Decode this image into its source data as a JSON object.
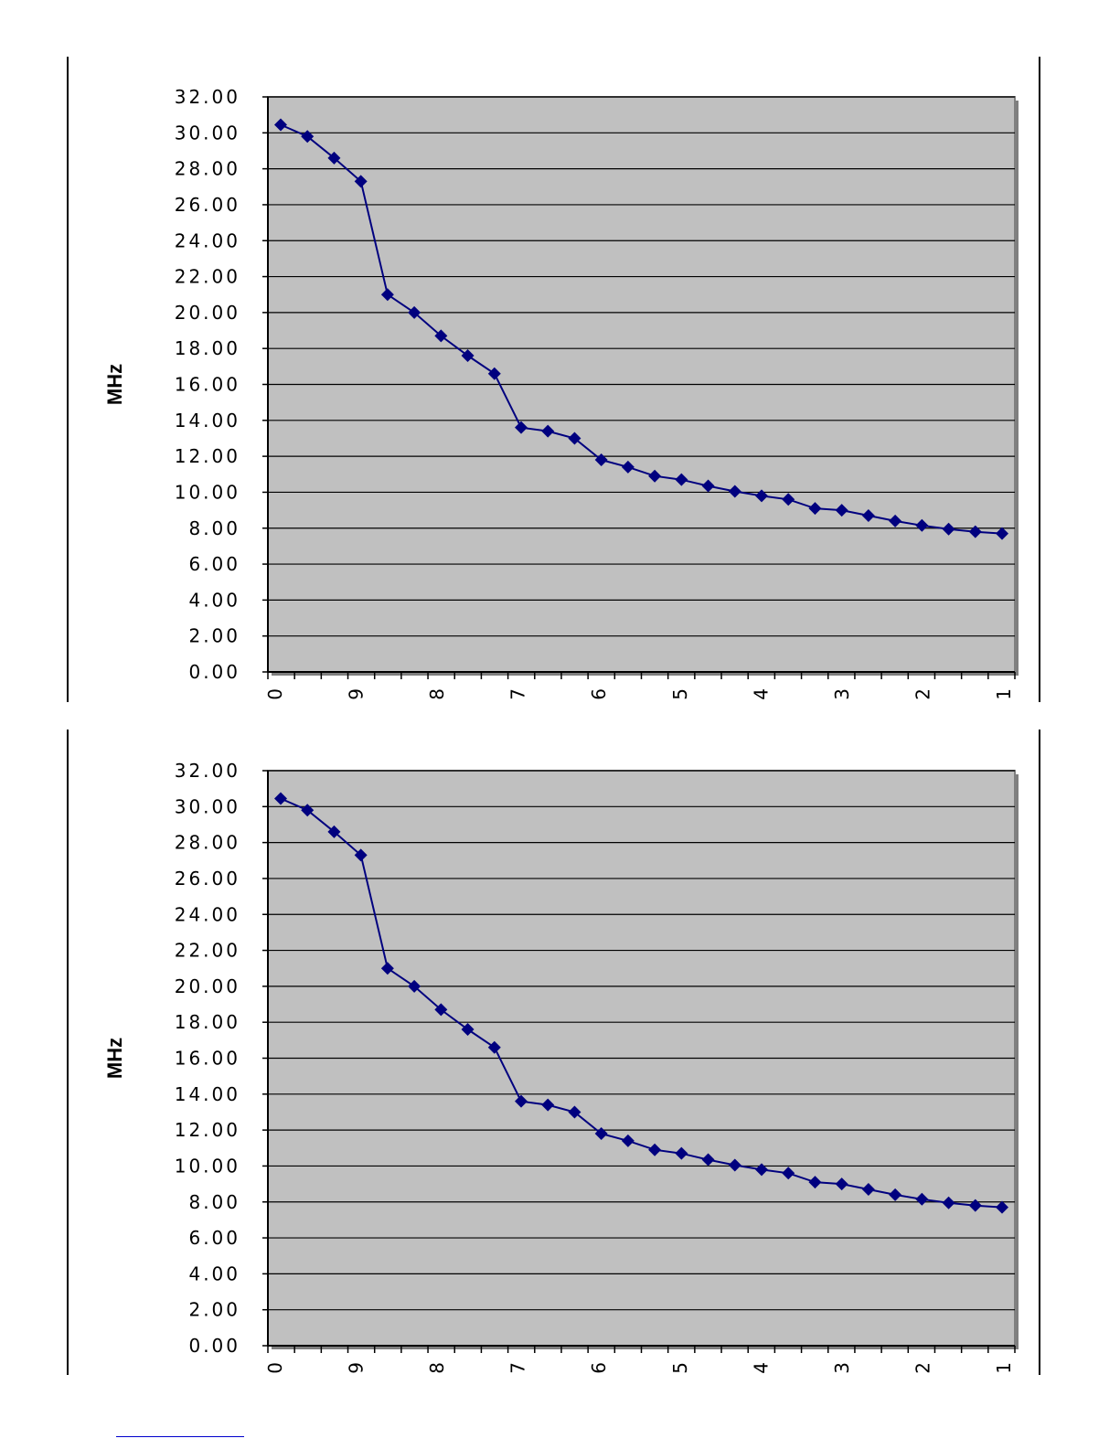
{
  "charts": [
    {
      "ylabel": "MHz"
    },
    {
      "ylabel": "MHz"
    }
  ],
  "colors": {
    "plot_bg": "#c0c0c0",
    "line": "#00007f",
    "grid": "#000000"
  },
  "chart_data": [
    {
      "type": "line",
      "title": "",
      "xlabel": "",
      "ylabel": "MHz",
      "ylim": [
        0,
        32
      ],
      "yticks": [
        "0.00",
        "2.00",
        "4.00",
        "6.00",
        "8.00",
        "10.00",
        "12.00",
        "14.00",
        "16.00",
        "18.00",
        "20.00",
        "22.00",
        "24.00",
        "26.00",
        "28.00",
        "30.00",
        "32.00"
      ],
      "xtick_labels": [
        "0",
        "9",
        "8",
        "7",
        "6",
        "5",
        "4",
        "3",
        "2",
        "1"
      ],
      "grid": true,
      "series": [
        {
          "values": [
            30.45,
            29.8,
            28.6,
            27.3,
            21.0,
            20.0,
            18.7,
            17.6,
            16.6,
            13.6,
            13.4,
            13.0,
            11.8,
            11.4,
            10.9,
            10.7,
            10.35,
            10.05,
            9.8,
            9.6,
            9.1,
            9.0,
            8.7,
            8.4,
            8.15,
            7.95,
            7.8,
            7.7
          ]
        }
      ]
    },
    {
      "type": "line",
      "title": "",
      "xlabel": "",
      "ylabel": "MHz",
      "ylim": [
        0,
        32
      ],
      "yticks": [
        "0.00",
        "2.00",
        "4.00",
        "6.00",
        "8.00",
        "10.00",
        "12.00",
        "14.00",
        "16.00",
        "18.00",
        "20.00",
        "22.00",
        "24.00",
        "26.00",
        "28.00",
        "30.00",
        "32.00"
      ],
      "xtick_labels": [
        "0",
        "9",
        "8",
        "7",
        "6",
        "5",
        "4",
        "3",
        "2",
        "1"
      ],
      "grid": true,
      "series": [
        {
          "values": [
            30.45,
            29.8,
            28.6,
            27.3,
            21.0,
            20.0,
            18.7,
            17.6,
            16.6,
            13.6,
            13.4,
            13.0,
            11.8,
            11.4,
            10.9,
            10.7,
            10.35,
            10.05,
            9.8,
            9.6,
            9.1,
            9.0,
            8.7,
            8.4,
            8.15,
            7.95,
            7.8,
            7.7
          ]
        }
      ]
    }
  ]
}
